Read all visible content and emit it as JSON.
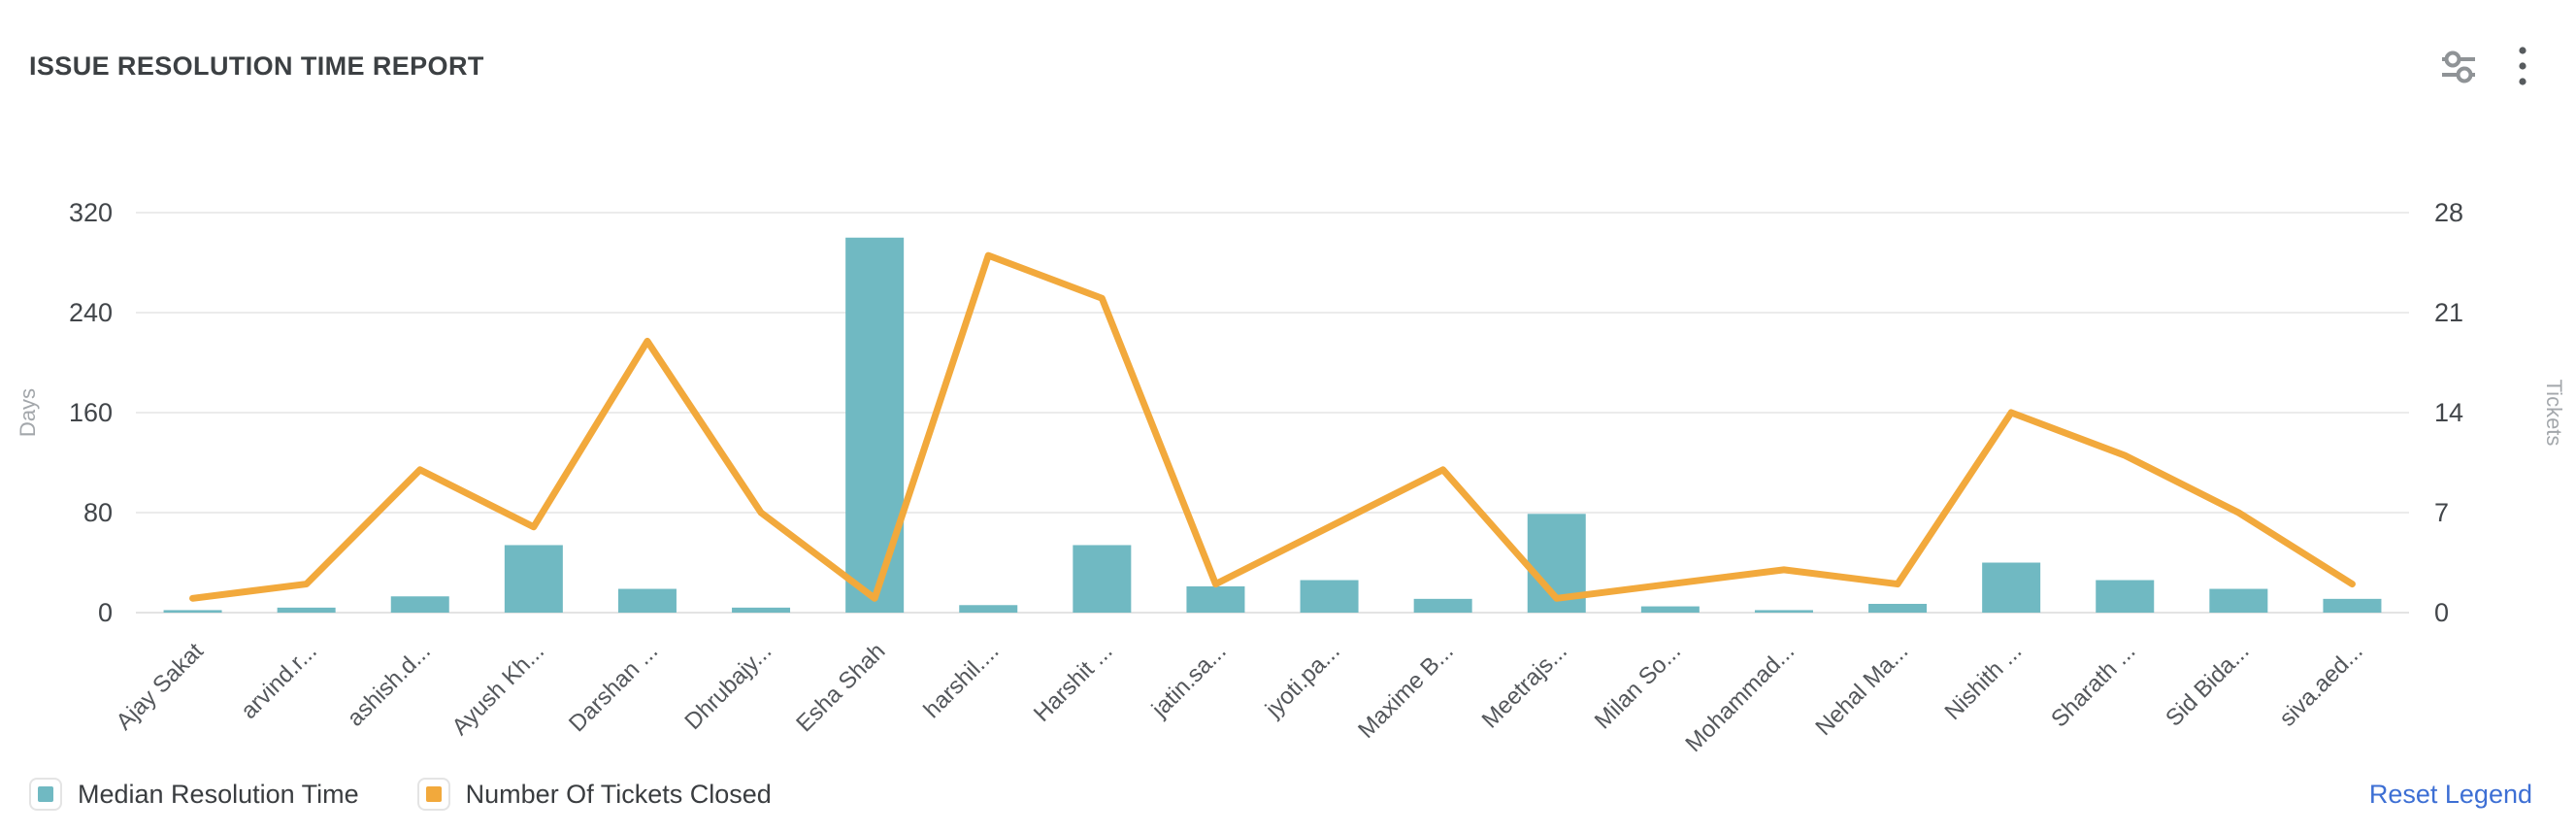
{
  "header": {
    "title": "ISSUE RESOLUTION TIME REPORT",
    "icons": [
      "filter-settings-icon",
      "more-options-icon"
    ]
  },
  "chart_data": {
    "type": "bar",
    "subtype": "combo-bar-line-dual-axis",
    "categories": [
      "Ajay Sakat",
      "arvind.r...",
      "ashish.d...",
      "Ayush Kh...",
      "Darshan ...",
      "Dhrubajy...",
      "Esha Shah",
      "harshil....",
      "Harshit ...",
      "jatin.sa...",
      "jyoti.pa...",
      "Maxime B...",
      "Meetrajs...",
      "Milan So...",
      "Mohammad...",
      "Nehal Ma...",
      "Nishith ...",
      "Sharath ...",
      "Sid Bida...",
      "siva.aed..."
    ],
    "series": [
      {
        "name": "Median Resolution Time",
        "type": "bar",
        "axis": "left",
        "color": "#70B9C2",
        "values": [
          2,
          4,
          13,
          54,
          19,
          4,
          300,
          6,
          54,
          21,
          26,
          11,
          79,
          5,
          2,
          7,
          40,
          26,
          19,
          11
        ]
      },
      {
        "name": "Number Of Tickets Closed",
        "type": "line",
        "axis": "right",
        "color": "#F2A93C",
        "values": [
          1,
          2,
          10,
          6,
          19,
          7,
          1,
          25,
          22,
          2,
          6,
          10,
          1,
          2,
          3,
          2,
          14,
          11,
          7,
          2
        ]
      }
    ],
    "left_axis": {
      "title": "Days",
      "ticks": [
        0,
        80,
        160,
        240,
        320
      ],
      "max": 320
    },
    "right_axis": {
      "title": "Tickets",
      "ticks": [
        0,
        7,
        14,
        21,
        28
      ],
      "max": 28
    },
    "grid": true,
    "legend_position": "bottom-left"
  },
  "legend": {
    "reset_label": "Reset Legend"
  },
  "colors": {
    "bar": "#70B9C2",
    "line": "#F2A93C",
    "title_text": "#3c4043",
    "tick_text": "#42464a",
    "axis_title_text": "#a3a7ab",
    "gridline": "#ebebeb",
    "reset_link": "#3d6fd4",
    "background": "#ffffff"
  }
}
